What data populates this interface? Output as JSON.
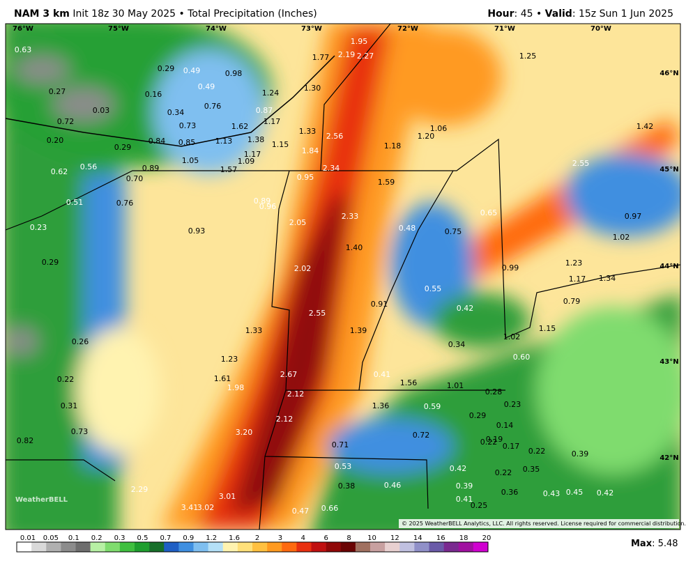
{
  "header": {
    "title": "NAM 3 km",
    "subtitle": "Init 18z 30 May 2025 • Total Precipitation (Inches)",
    "hour_key": "Hour",
    "hour_value": ": 45 • ",
    "valid_key": "Valid",
    "valid_value": ": 15z Sun 1 Jun 2025"
  },
  "map": {
    "longitudes": [
      "76°W",
      "75°W",
      "74°W",
      "73°W",
      "72°W",
      "71°W",
      "70°W"
    ],
    "latitudes": [
      "46°N",
      "45°N",
      "44°N",
      "43°N",
      "42°N"
    ],
    "station_values": [
      "0.63",
      "1.95",
      "2.19",
      "2.27",
      "1.77",
      "1.25",
      "0.29",
      "0.49",
      "0.98",
      "0.27",
      "0.16",
      "0.49",
      "1.24",
      "1.30",
      "0.03",
      "0.34",
      "0.76",
      "0.87",
      "0.72",
      "0.73",
      "1.62",
      "1.17",
      "1.33",
      "2.56",
      "1.06",
      "1.20",
      "1.42",
      "0.20",
      "0.29",
      "0.84",
      "0.85",
      "1.13",
      "1.38",
      "1.15",
      "1.84",
      "1.18",
      "1.17",
      "1.09",
      "1.05",
      "0.62",
      "0.56",
      "0.89",
      "1.57",
      "2.34",
      "2.55",
      "0.70",
      "0.95",
      "1.59",
      "0.51",
      "0.76",
      "0.89",
      "0.96",
      "0.65",
      "0.97",
      "2.05",
      "2.33",
      "0.48",
      "0.75",
      "0.23",
      "0.93",
      "1.02",
      "1.40",
      "0.29",
      "2.02",
      "0.99",
      "1.23",
      "1.17",
      "1.34",
      "0.55",
      "0.79",
      "0.91",
      "0.42",
      "2.55",
      "1.33",
      "1.39",
      "1.15",
      "0.26",
      "1.02",
      "0.34",
      "1.23",
      "0.60",
      "0.22",
      "1.61",
      "2.67",
      "0.41",
      "1.56",
      "1.01",
      "1.98",
      "2.12",
      "0.28",
      "0.31",
      "1.36",
      "0.59",
      "0.23",
      "0.29",
      "2.12",
      "0.14",
      "0.73",
      "3.20",
      "0.72",
      "0.19",
      "0.22",
      "0.17",
      "0.82",
      "0.71",
      "0.22",
      "0.39",
      "0.53",
      "0.42",
      "0.35",
      "0.22",
      "0.38",
      "0.46",
      "0.39",
      "2.29",
      "3.01",
      "0.36",
      "0.43",
      "0.45",
      "0.42",
      "0.41",
      "3.41",
      "3.02",
      "0.25",
      "0.47",
      "0.66"
    ],
    "logo": "WeatherBELL",
    "copyright": "© 2025 WeatherBELL Analytics, LLC. All rights reserved. License required for commercial distribution."
  },
  "legend": {
    "ticks": [
      0.01,
      0.05,
      0.1,
      0.2,
      0.3,
      0.5,
      0.7,
      0.9,
      1.2,
      1.6,
      2,
      3,
      4,
      6,
      8,
      10,
      12,
      14,
      16,
      18,
      20
    ],
    "colors": [
      "#ffffff",
      "#d9d9d9",
      "#b0b0b0",
      "#8c8c8c",
      "#6e6e6e",
      "#b7f0a4",
      "#7fdc6e",
      "#3fbf3f",
      "#1e9e2e",
      "#176f2a",
      "#1f5fc4",
      "#3f8fe0",
      "#7fbff0",
      "#b4e0f7",
      "#fff3b0",
      "#ffe07a",
      "#ffc040",
      "#ff9a20",
      "#ff6a10",
      "#e83010",
      "#c01010",
      "#900808",
      "#6a0404",
      "#a07060",
      "#c8a0a0",
      "#e8d0d0",
      "#c0c0e0",
      "#9090c8",
      "#6a5aa8",
      "#7a2a90",
      "#a010a0",
      "#d000d0"
    ],
    "max_key": "Max",
    "max_value": ": 5.48"
  }
}
